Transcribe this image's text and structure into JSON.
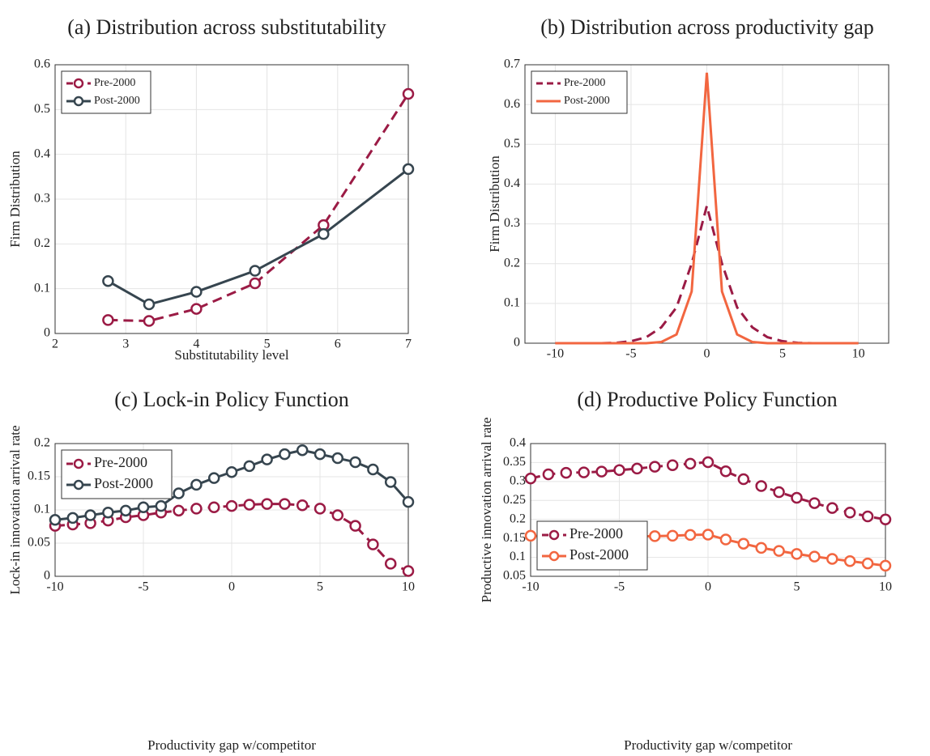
{
  "chart_data": [
    {
      "type": "line",
      "title": "(a) Distribution across substitutability",
      "x_label": "Substitutability level",
      "y_label": "Firm Distribution",
      "x": [
        2.75,
        3.33,
        4.0,
        4.83,
        5.8,
        7.0
      ],
      "series": [
        {
          "name": "Pre-2000",
          "color": "#9b1b45",
          "line_style": "dashed",
          "marker": "circle",
          "values": [
            0.03,
            0.028,
            0.055,
            0.112,
            0.242,
            0.535
          ]
        },
        {
          "name": "Post-2000",
          "color": "#36454f",
          "line_style": "solid",
          "marker": "circle",
          "values": [
            0.117,
            0.065,
            0.093,
            0.14,
            0.222,
            0.367
          ]
        }
      ],
      "xlim": [
        2,
        7
      ],
      "xticks": [
        2,
        3,
        4,
        5,
        6,
        7
      ],
      "ylim": [
        0,
        0.6
      ],
      "yticks": [
        0,
        0.1,
        0.2,
        0.3,
        0.4,
        0.5,
        0.6
      ],
      "grid": true,
      "legend": "upper-left"
    },
    {
      "type": "line",
      "title": "(b) Distribution across productivity gap",
      "y_label": "Firm Distribution",
      "x": [
        -10,
        -9,
        -8,
        -7,
        -6,
        -5,
        -4,
        -3,
        -2,
        -1,
        0,
        1,
        2,
        3,
        4,
        5,
        6,
        7,
        8,
        9,
        10
      ],
      "series": [
        {
          "name": "Pre-2000",
          "color": "#9b1b45",
          "line_style": "dashed",
          "marker": "none",
          "values": [
            0,
            0,
            0,
            0,
            0.001,
            0.005,
            0.015,
            0.04,
            0.09,
            0.2,
            0.345,
            0.2,
            0.09,
            0.04,
            0.015,
            0.005,
            0.001,
            0,
            0,
            0,
            0
          ]
        },
        {
          "name": "Post-2000",
          "color": "#f26640",
          "line_style": "solid",
          "marker": "none",
          "values": [
            0,
            0,
            0,
            0,
            0,
            0,
            0,
            0.003,
            0.022,
            0.13,
            0.68,
            0.13,
            0.022,
            0.003,
            0,
            0,
            0,
            0,
            0,
            0,
            0
          ]
        }
      ],
      "xlim": [
        -12,
        12
      ],
      "xticks": [
        -10,
        -5,
        0,
        5,
        10
      ],
      "ylim": [
        0,
        0.7
      ],
      "yticks": [
        0,
        0.1,
        0.2,
        0.3,
        0.4,
        0.5,
        0.6,
        0.7
      ],
      "grid": true,
      "legend": "upper-left"
    },
    {
      "type": "line",
      "title": "(c) Lock-in Policy Function",
      "x_label": "Productivity gap w/competitor",
      "y_label": "Lock-in innovation arrival rate",
      "x": [
        -10,
        -9,
        -8,
        -7,
        -6,
        -5,
        -4,
        -3,
        -2,
        -1,
        0,
        1,
        2,
        3,
        4,
        5,
        6,
        7,
        8,
        9,
        10
      ],
      "series": [
        {
          "name": "Pre-2000",
          "color": "#9b1b45",
          "line_style": "dashed",
          "marker": "circle",
          "values": [
            0.076,
            0.078,
            0.08,
            0.084,
            0.089,
            0.092,
            0.096,
            0.099,
            0.102,
            0.104,
            0.106,
            0.108,
            0.109,
            0.109,
            0.107,
            0.102,
            0.092,
            0.076,
            0.048,
            0.019,
            0.008
          ]
        },
        {
          "name": "Post-2000",
          "color": "#36454f",
          "line_style": "solid",
          "marker": "circle",
          "values": [
            0.085,
            0.088,
            0.092,
            0.096,
            0.099,
            0.104,
            0.106,
            0.125,
            0.138,
            0.148,
            0.157,
            0.166,
            0.176,
            0.184,
            0.19,
            0.184,
            0.178,
            0.172,
            0.161,
            0.142,
            0.112
          ]
        }
      ],
      "xlim": [
        -10,
        10
      ],
      "xticks": [
        -10,
        -5,
        0,
        5,
        10
      ],
      "ylim": [
        0,
        0.2
      ],
      "yticks": [
        0,
        0.05,
        0.1,
        0.15,
        0.2
      ],
      "grid": true,
      "legend": "upper-left"
    },
    {
      "type": "line",
      "title": "(d) Productive Policy Function",
      "x_label": "Productivity gap w/competitor",
      "y_label": "Productive innovation arrival rate",
      "x": [
        -10,
        -9,
        -8,
        -7,
        -6,
        -5,
        -4,
        -3,
        -2,
        -1,
        0,
        1,
        2,
        3,
        4,
        5,
        6,
        7,
        8,
        9,
        10
      ],
      "series": [
        {
          "name": "Pre-2000",
          "color": "#9b1b45",
          "line_style": "dashed",
          "marker": "circle",
          "values": [
            0.308,
            0.319,
            0.323,
            0.324,
            0.326,
            0.33,
            0.334,
            0.339,
            0.343,
            0.347,
            0.351,
            0.327,
            0.306,
            0.288,
            0.272,
            0.257,
            0.243,
            0.23,
            0.218,
            0.208,
            0.2
          ]
        },
        {
          "name": "Post-2000",
          "color": "#f26640",
          "line_style": "solid",
          "marker": "circle",
          "values": [
            0.157,
            0.154,
            0.153,
            0.153,
            0.154,
            0.155,
            0.155,
            0.156,
            0.157,
            0.159,
            0.16,
            0.147,
            0.136,
            0.125,
            0.117,
            0.109,
            0.102,
            0.096,
            0.09,
            0.084,
            0.078
          ]
        }
      ],
      "xlim": [
        -10,
        10
      ],
      "xticks": [
        -10,
        -5,
        0,
        5,
        10
      ],
      "ylim": [
        0.05,
        0.4
      ],
      "yticks": [
        0.05,
        0.1,
        0.15,
        0.2,
        0.25,
        0.3,
        0.35,
        0.4
      ],
      "grid": true,
      "legend": "lower-left"
    }
  ]
}
